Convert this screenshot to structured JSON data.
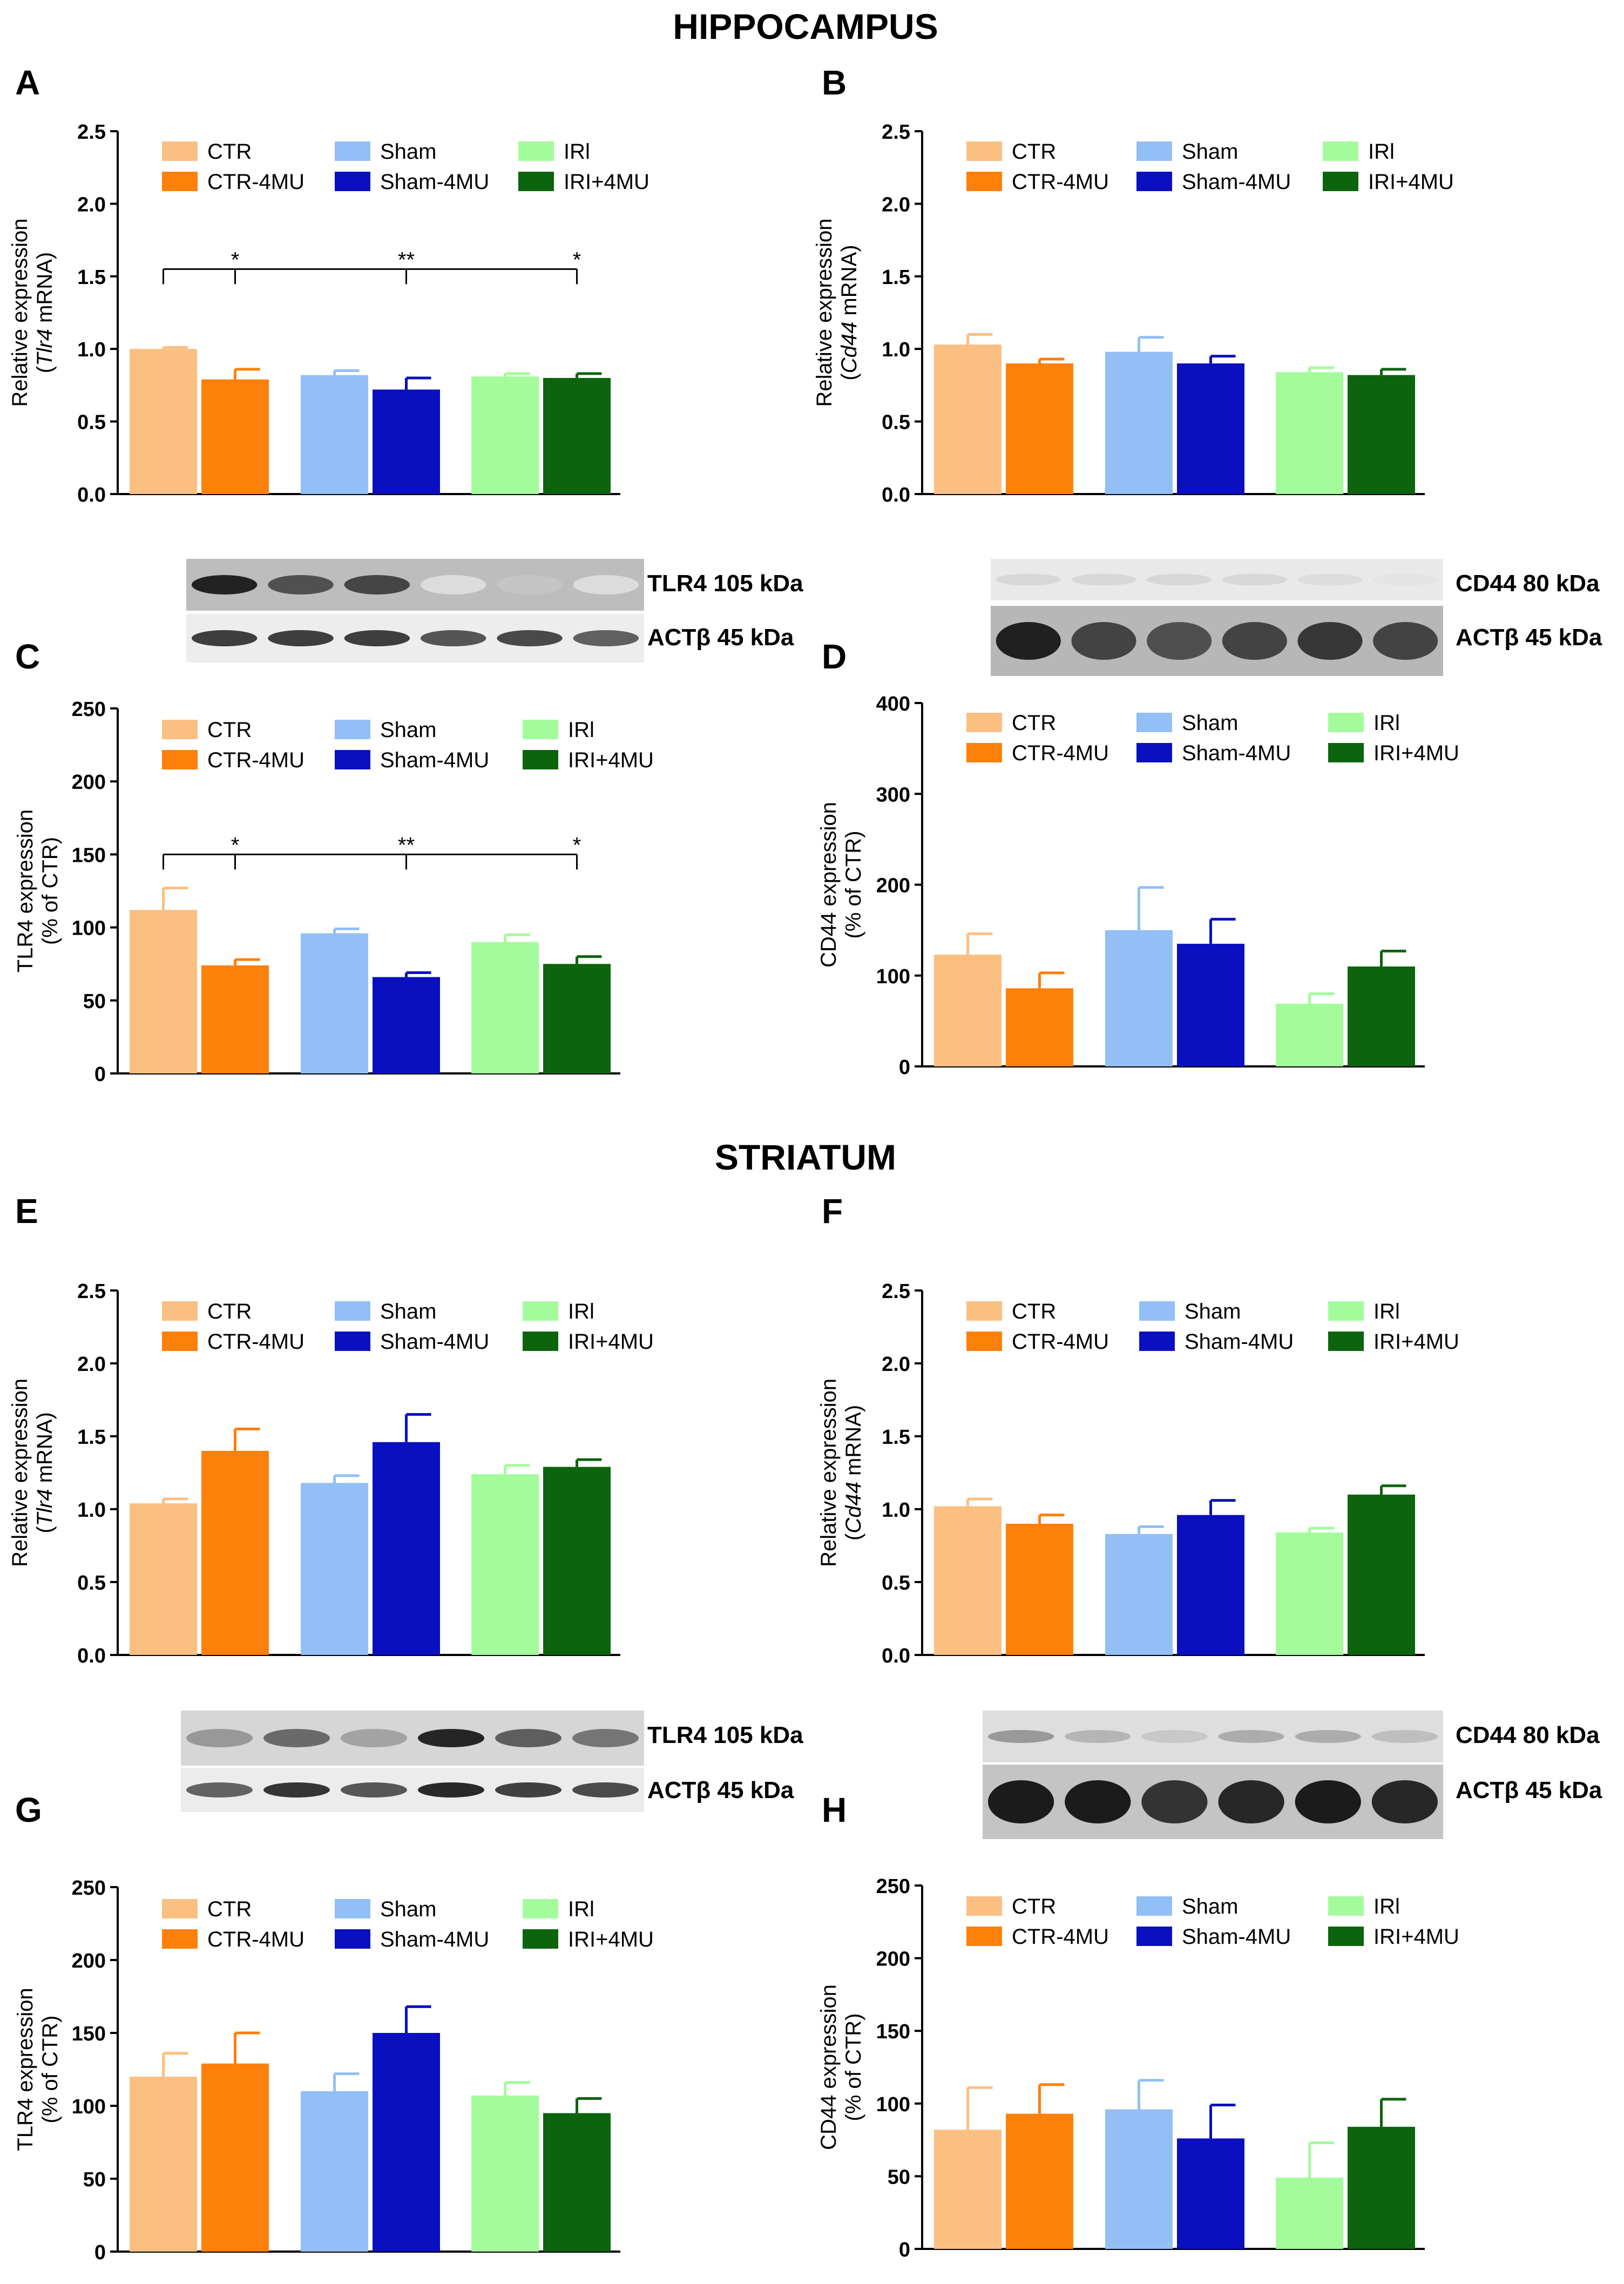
{
  "sections": {
    "hippocampus": "HIPPOCAMPUS",
    "striatum": "STRIATUM"
  },
  "legend_groups": {
    "colors": {
      "CTR": "#fbbf82",
      "CTR-4MU": "#fc800a",
      "Sham": "#92bff5",
      "Sham-4MU": "#0a0fbf",
      "IRI": "#a3fb9c",
      "IRI+4MU": "#0c640d"
    },
    "axis_color": "#000000"
  },
  "blots": {
    "hippocampus_tlr4": {
      "label": "TLR4 105 kDa",
      "intensities": [
        0.95,
        0.75,
        0.8,
        0.15,
        0.25,
        0.15
      ]
    },
    "hippocampus_actb_left": {
      "label": "ACTβ 45 kDa",
      "intensities": [
        0.85,
        0.85,
        0.85,
        0.75,
        0.8,
        0.7
      ]
    },
    "hippocampus_cd44": {
      "label": "CD44 80 kDa",
      "intensities": [
        0.3,
        0.3,
        0.3,
        0.3,
        0.25,
        0.2
      ]
    },
    "hippocampus_actb_right": {
      "label": "ACTβ 45 kDa",
      "intensities": [
        0.95,
        0.8,
        0.75,
        0.8,
        0.85,
        0.8
      ]
    },
    "striatum_tlr4": {
      "label": "TLR4 105 kDa",
      "intensities": [
        0.45,
        0.65,
        0.4,
        0.95,
        0.7,
        0.6
      ]
    },
    "striatum_actb_left": {
      "label": "ACTβ 45 kDa",
      "intensities": [
        0.7,
        0.9,
        0.75,
        0.95,
        0.85,
        0.8
      ]
    },
    "striatum_cd44": {
      "label": "CD44 80 kDa",
      "intensities": [
        0.55,
        0.4,
        0.3,
        0.45,
        0.45,
        0.35
      ]
    },
    "striatum_actb_right": {
      "label": "ACTβ 45 kDa",
      "intensities": [
        0.95,
        0.95,
        0.85,
        0.9,
        0.95,
        0.9
      ]
    }
  },
  "chart_data": [
    {
      "panel": "A",
      "type": "bar",
      "categories": [
        "CTR",
        "CTR-4MU",
        "Sham",
        "Sham-4MU",
        "IRI",
        "IRI+4MU"
      ],
      "legend": [
        "CTR",
        "CTR-4MU",
        "Sham",
        "Sham-4MU",
        "IRl",
        "IRI+4MU"
      ],
      "values": [
        1.0,
        0.79,
        0.82,
        0.72,
        0.81,
        0.8
      ],
      "errors": [
        0.01,
        0.07,
        0.03,
        0.08,
        0.02,
        0.03
      ],
      "ylabel": "Relative expression",
      "ylabel2_pre": "(",
      "ylabel2_italic": "Tlr4",
      "ylabel2_post": " mRNA)",
      "ylim": [
        0,
        2.5
      ],
      "yticks": [
        "0.0",
        "0.5",
        "1.0",
        "1.5",
        "2.0",
        "2.5"
      ],
      "significance": {
        "level": 1.55,
        "from": 0,
        "marks": [
          {
            "to": 1,
            "label": "*"
          },
          {
            "to": 3,
            "label": "**"
          },
          {
            "to": 5,
            "label": "*"
          }
        ]
      }
    },
    {
      "panel": "B",
      "type": "bar",
      "categories": [
        "CTR",
        "CTR-4MU",
        "Sham",
        "Sham-4MU",
        "IRI",
        "IRI+4MU"
      ],
      "legend": [
        "CTR",
        "CTR-4MU",
        "Sham",
        "Sham-4MU",
        "IRl",
        "IRI+4MU"
      ],
      "values": [
        1.03,
        0.9,
        0.98,
        0.9,
        0.84,
        0.82
      ],
      "errors": [
        0.07,
        0.03,
        0.1,
        0.05,
        0.03,
        0.04
      ],
      "ylabel": "Relative expression",
      "ylabel2_pre": "(",
      "ylabel2_italic": "Cd44",
      "ylabel2_post": " mRNA)",
      "ylim": [
        0,
        2.5
      ],
      "yticks": [
        "0.0",
        "0.5",
        "1.0",
        "1.5",
        "2.0",
        "2.5"
      ]
    },
    {
      "panel": "C",
      "type": "bar",
      "categories": [
        "CTR",
        "CTR-4MU",
        "Sham",
        "Sham-4MU",
        "IRI",
        "IRI+4MU"
      ],
      "legend": [
        "CTR",
        "CTR-4MU",
        "Sham",
        "Sham-4MU",
        "IRl",
        "IRI+4MU"
      ],
      "values": [
        112,
        74,
        96,
        66,
        90,
        75
      ],
      "errors": [
        15,
        4,
        3,
        3,
        5,
        5
      ],
      "ylabel": "TLR4 expression",
      "ylabel2_pre": "(% of CTR)",
      "ylabel2_italic": "",
      "ylabel2_post": "",
      "ylim": [
        0,
        250
      ],
      "yticks": [
        "0",
        "50",
        "100",
        "150",
        "200",
        "250"
      ],
      "significance": {
        "level": 150,
        "from": 0,
        "marks": [
          {
            "to": 1,
            "label": "*"
          },
          {
            "to": 3,
            "label": "**"
          },
          {
            "to": 5,
            "label": "*"
          }
        ]
      }
    },
    {
      "panel": "D",
      "type": "bar",
      "categories": [
        "CTR",
        "CTR-4MU",
        "Sham",
        "Sham-4MU",
        "IRI",
        "IRI+4MU"
      ],
      "legend": [
        "CTR",
        "CTR-4MU",
        "Sham",
        "Sham-4MU",
        "IRl",
        "IRI+4MU"
      ],
      "values": [
        123,
        86,
        150,
        135,
        69,
        110
      ],
      "errors": [
        23,
        17,
        47,
        27,
        11,
        17
      ],
      "ylabel": "CD44 expression",
      "ylabel2_pre": "(% of CTR)",
      "ylabel2_italic": "",
      "ylabel2_post": "",
      "ylim": [
        0,
        400
      ],
      "yticks": [
        "0",
        "100",
        "200",
        "300",
        "400"
      ]
    },
    {
      "panel": "E",
      "type": "bar",
      "categories": [
        "CTR",
        "CTR-4MU",
        "Sham",
        "Sham-4MU",
        "IRI",
        "IRI+4MU"
      ],
      "legend": [
        "CTR",
        "CTR-4MU",
        "Sham",
        "Sham-4MU",
        "IRl",
        "IRI+4MU"
      ],
      "values": [
        1.04,
        1.4,
        1.18,
        1.46,
        1.24,
        1.29
      ],
      "errors": [
        0.03,
        0.15,
        0.05,
        0.19,
        0.06,
        0.05
      ],
      "ylabel": "Relative expression",
      "ylabel2_pre": "(",
      "ylabel2_italic": "Tlr4",
      "ylabel2_post": " mRNA)",
      "ylim": [
        0,
        2.5
      ],
      "yticks": [
        "0.0",
        "0.5",
        "1.0",
        "1.5",
        "2.0",
        "2.5"
      ]
    },
    {
      "panel": "F",
      "type": "bar",
      "categories": [
        "CTR",
        "CTR-4MU",
        "Sham",
        "Sham-4MU",
        "IRI",
        "IRI+4MU"
      ],
      "legend": [
        "CTR",
        "CTR-4MU",
        "Sham",
        "Sham-4MU",
        "IRl",
        "IRI+4MU"
      ],
      "values": [
        1.02,
        0.9,
        0.83,
        0.96,
        0.84,
        1.1
      ],
      "errors": [
        0.05,
        0.06,
        0.05,
        0.1,
        0.03,
        0.06
      ],
      "ylabel": "Relative expression",
      "ylabel2_pre": "(",
      "ylabel2_italic": "Cd44",
      "ylabel2_post": " mRNA)",
      "ylim": [
        0,
        2.5
      ],
      "yticks": [
        "0.0",
        "0.5",
        "1.0",
        "1.5",
        "2.0",
        "2.5"
      ]
    },
    {
      "panel": "G",
      "type": "bar",
      "categories": [
        "CTR",
        "CTR-4MU",
        "Sham",
        "Sham-4MU",
        "IRI",
        "IRI+4MU"
      ],
      "legend": [
        "CTR",
        "CTR-4MU",
        "Sham",
        "Sham-4MU",
        "IRl",
        "IRI+4MU"
      ],
      "values": [
        120,
        129,
        110,
        150,
        107,
        95
      ],
      "errors": [
        16,
        21,
        12,
        18,
        9,
        10
      ],
      "ylabel": "TLR4 expression",
      "ylabel2_pre": "(% of CTR)",
      "ylabel2_italic": "",
      "ylabel2_post": "",
      "ylim": [
        0,
        250
      ],
      "yticks": [
        "0",
        "50",
        "100",
        "150",
        "200",
        "250"
      ]
    },
    {
      "panel": "H",
      "type": "bar",
      "categories": [
        "CTR",
        "CTR-4MU",
        "Sham",
        "Sham-4MU",
        "IRI",
        "IRI+4MU"
      ],
      "legend": [
        "CTR",
        "CTR-4MU",
        "Sham",
        "Sham-4MU",
        "IRl",
        "IRI+4MU"
      ],
      "values": [
        82,
        93,
        96,
        76,
        49,
        84
      ],
      "errors": [
        29,
        20,
        20,
        23,
        24,
        19
      ],
      "ylabel": "CD44 expression",
      "ylabel2_pre": "(% of CTR)",
      "ylabel2_italic": "",
      "ylabel2_post": "",
      "ylim": [
        0,
        250
      ],
      "yticks": [
        "0",
        "50",
        "100",
        "150",
        "200",
        "250"
      ]
    }
  ]
}
